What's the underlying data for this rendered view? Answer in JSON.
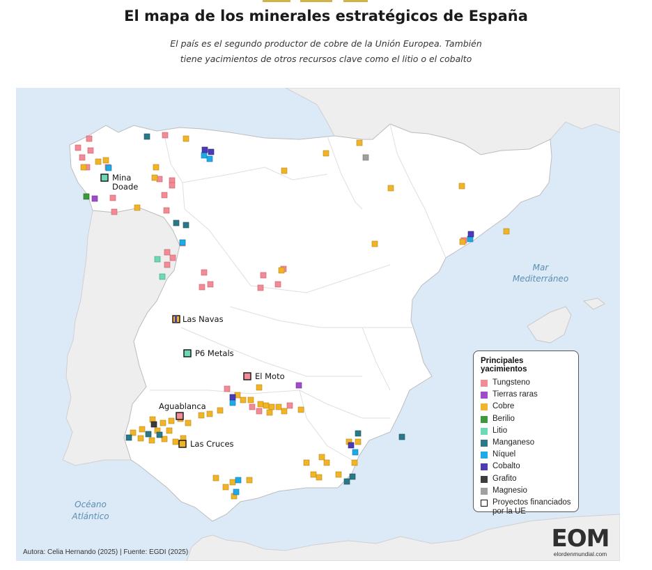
{
  "title": "El mapa de los minerales estratégicos de España",
  "subtitle_line1": "El país es el segundo productor de cobre de la Unión Europea. También",
  "subtitle_line2": "tiene yacimientos de otros recursos clave como el litio o el cobalto",
  "colors": {
    "sea": "#dce9f6",
    "land_spain": "#ffffff",
    "land_neighbors": "#eeeeee",
    "border": "#cfcfcf",
    "accent": "#d4b24a"
  },
  "seas": {
    "med_line1": "Mar",
    "med_line2": "Mediterráneo",
    "atl_line1": "Océano",
    "atl_line2": "Atlántico"
  },
  "labels": {
    "mina_doade_1": "Mina",
    "mina_doade_2": "Doade",
    "las_navas": "Las Navas",
    "p6_metals": "P6 Metals",
    "el_moto": "El Moto",
    "aguablanca": "Aguablanca",
    "las_cruces": "Las Cruces"
  },
  "legend": {
    "title": "Principales yacimientos",
    "items": [
      {
        "label": "Tungsteno",
        "color": "#f08c96"
      },
      {
        "label": "Tierras raras",
        "color": "#a04cc8"
      },
      {
        "label": "Cobre",
        "color": "#f0b428"
      },
      {
        "label": "Berilio",
        "color": "#3c9a3c"
      },
      {
        "label": "Litio",
        "color": "#6ed8b4"
      },
      {
        "label": "Manganeso",
        "color": "#2a7888"
      },
      {
        "label": "Níquel",
        "color": "#1eaae6"
      },
      {
        "label": "Cobalto",
        "color": "#4a3cb4"
      },
      {
        "label": "Grafito",
        "color": "#3c3c3c"
      },
      {
        "label": "Magnesio",
        "color": "#a0a0a0"
      }
    ],
    "eu_label": "Proyectos financiados por la UE"
  },
  "footer": "Autora: Celia Hernando (2025) | Fuente: EGDI  (2025)",
  "logo": {
    "mark": "EOM",
    "url": "elordenmundial.com"
  }
}
